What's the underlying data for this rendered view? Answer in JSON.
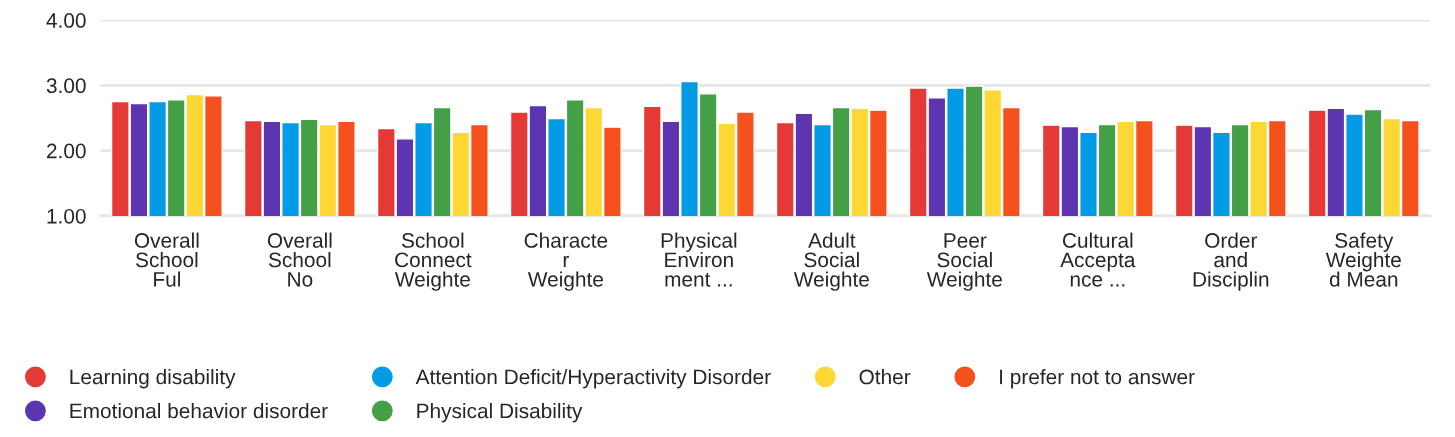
{
  "chart_data": {
    "type": "bar",
    "categories": [
      "Overall\nSchool\nFul",
      "Overall\nSchool\nNo",
      "School\nConnect\nWeighte",
      "Characte\nr\nWeighte",
      "Physical\nEnviron\nment ...",
      "Adult\nSocial\nWeighte",
      "Peer\nSocial\nWeighte",
      "Cultural\nAccepta\nnce ...",
      "Order\nand\nDisciplin",
      "Safety\nWeighte\nd Mean"
    ],
    "series": [
      {
        "name": "Learning disability",
        "color": "#e53935",
        "values": [
          2.75,
          2.46,
          2.34,
          2.59,
          2.68,
          2.43,
          2.96,
          2.39,
          2.39,
          2.62
        ]
      },
      {
        "name": "Emotional behavior disorder",
        "color": "#5e35b1",
        "values": [
          2.72,
          2.45,
          2.18,
          2.69,
          2.45,
          2.57,
          2.81,
          2.37,
          2.37,
          2.65
        ]
      },
      {
        "name": "Attention Deficit/Hyperactivity Disorder",
        "color": "#039be5",
        "values": [
          2.75,
          2.43,
          2.43,
          2.49,
          3.06,
          2.4,
          2.96,
          2.28,
          2.28,
          2.56
        ]
      },
      {
        "name": "Physical Disability",
        "color": "#43a047",
        "values": [
          2.78,
          2.48,
          2.66,
          2.78,
          2.87,
          2.66,
          2.99,
          2.4,
          2.4,
          2.63
        ]
      },
      {
        "name": "Other",
        "color": "#fdd835",
        "values": [
          2.86,
          2.4,
          2.28,
          2.66,
          2.42,
          2.65,
          2.93,
          2.45,
          2.45,
          2.49
        ]
      },
      {
        "name": "I prefer not to answer",
        "color": "#f4511e",
        "values": [
          2.84,
          2.45,
          2.4,
          2.36,
          2.59,
          2.62,
          2.66,
          2.46,
          2.46,
          2.46
        ]
      }
    ],
    "ylim": [
      1,
      4
    ],
    "yticks": [
      {
        "value": 1,
        "label": "1.00"
      },
      {
        "value": 2,
        "label": "2.00"
      },
      {
        "value": 3,
        "label": "3.00"
      },
      {
        "value": 4,
        "label": "4.00"
      }
    ],
    "grid": "y",
    "legend": "bottom"
  }
}
